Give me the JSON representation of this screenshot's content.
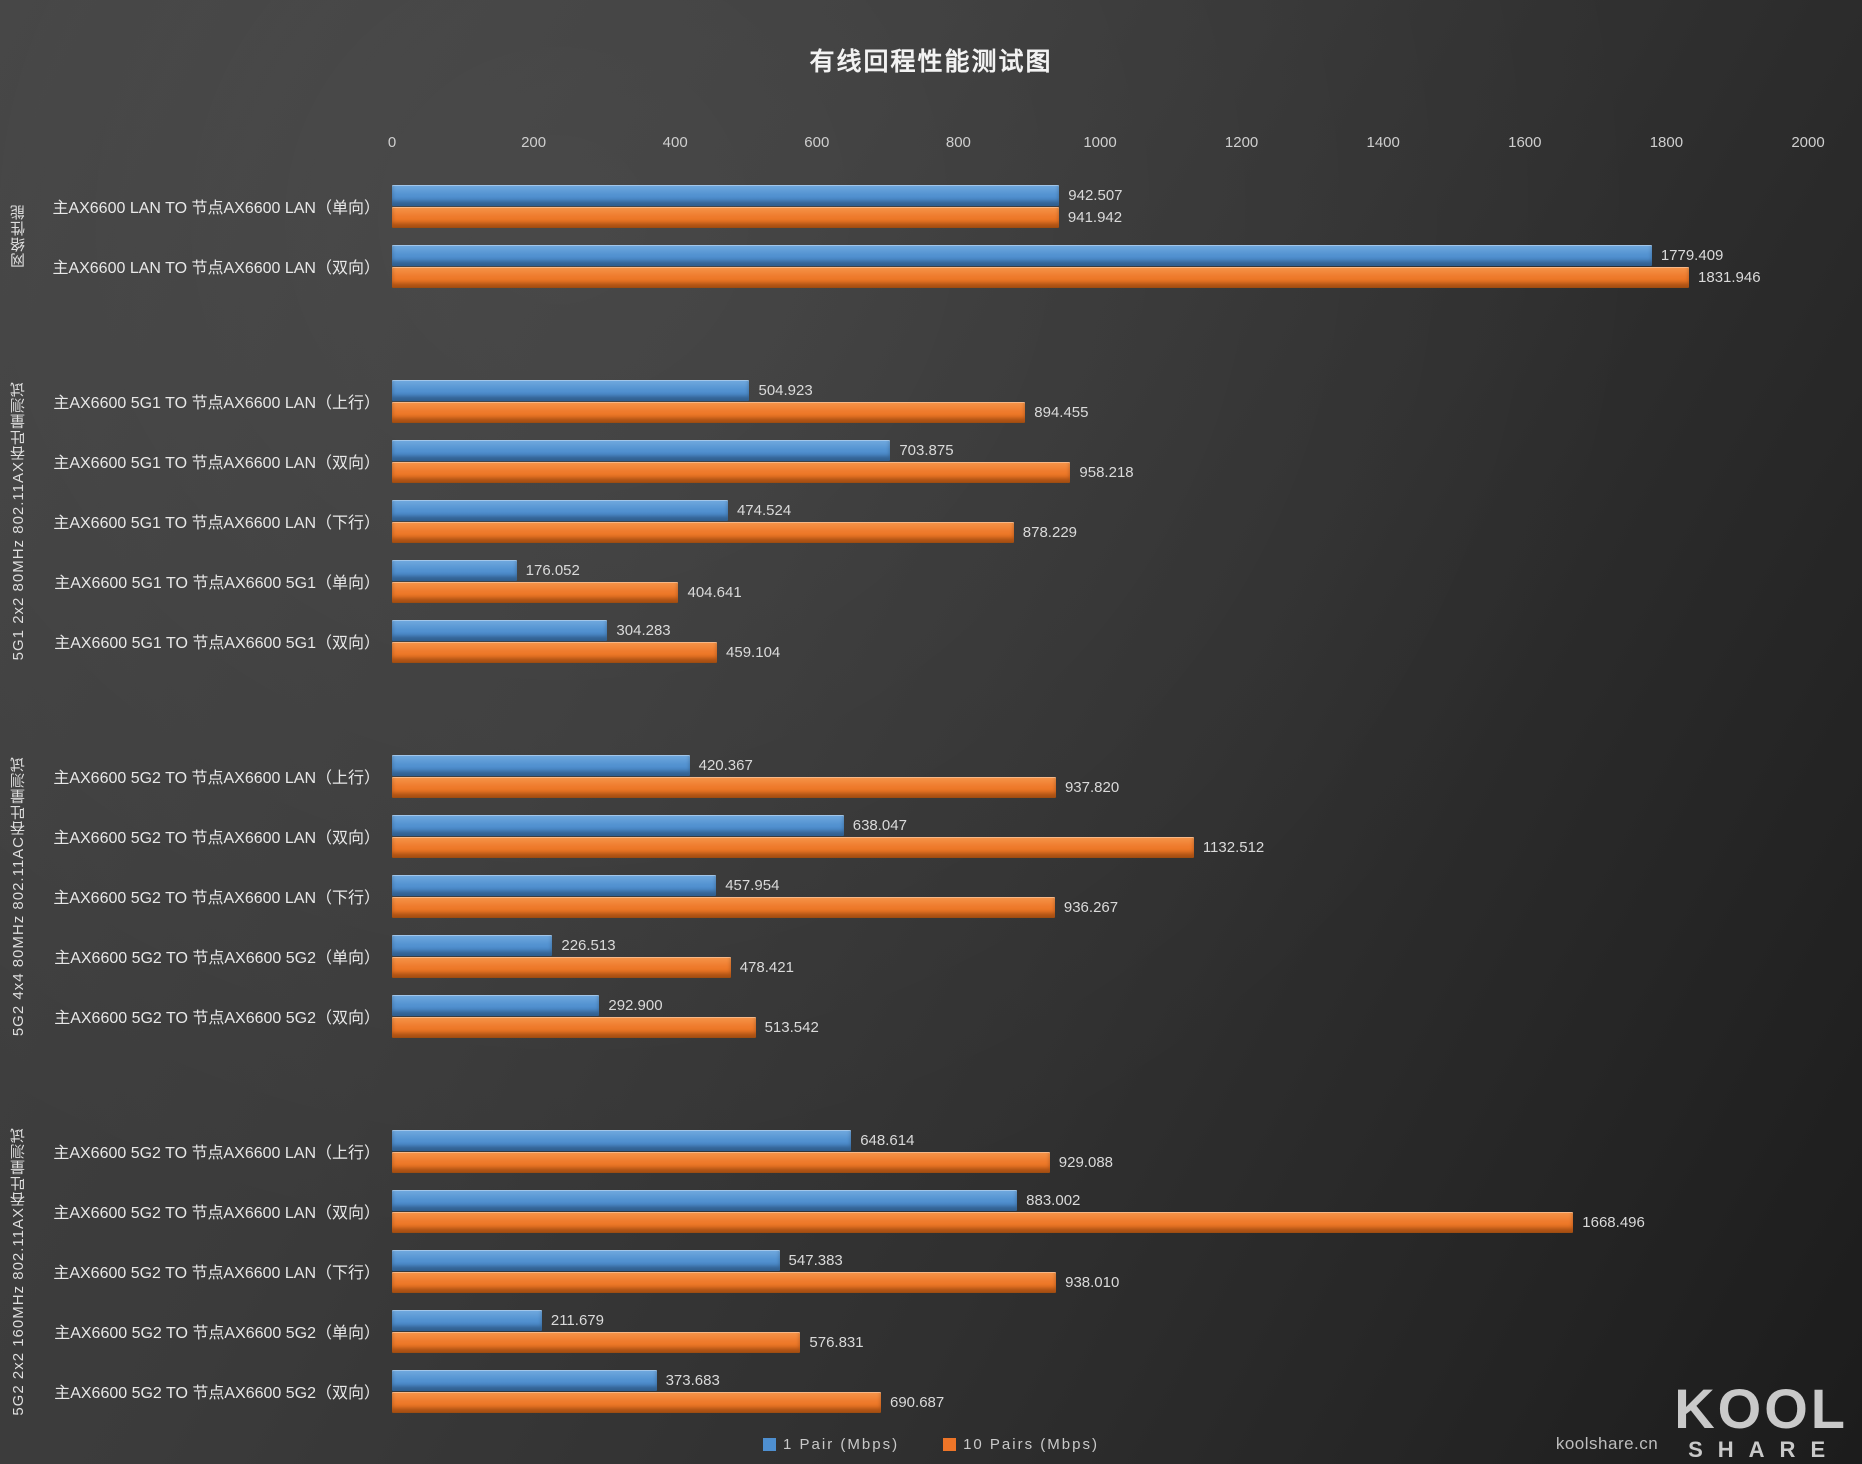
{
  "chart_data": {
    "type": "bar",
    "orientation": "horizontal",
    "title": "有线回程性能测试图",
    "x_axis": {
      "min": 0,
      "max": 2000,
      "tick_interval": 200,
      "ticks": [
        0,
        200,
        400,
        600,
        800,
        1000,
        1200,
        1400,
        1600,
        1800,
        2000
      ]
    },
    "legend_position": "bottom",
    "series": [
      {
        "name": "1 Pair (Mbps)",
        "color": "#4E8FD0"
      },
      {
        "name": "10 Pairs (Mbps)",
        "color": "#EE7528"
      }
    ],
    "groups": [
      {
        "label": "网络性能",
        "rows": [
          {
            "label": "主AX6600 LAN TO 节点AX6600 LAN（单向）",
            "values": [
              942.507,
              941.942
            ],
            "display": [
              "942.507",
              "941.942"
            ]
          },
          {
            "label": "主AX6600 LAN TO 节点AX6600 LAN（双向）",
            "values": [
              1779.409,
              1831.946
            ],
            "display": [
              "1779.409",
              "1831.946"
            ]
          }
        ]
      },
      {
        "label": "5G1 2x2 80MHz 802.11AX吞吐量测试",
        "rows": [
          {
            "label": "主AX6600 5G1 TO 节点AX6600 LAN（上行）",
            "values": [
              504.923,
              894.455
            ],
            "display": [
              "504.923",
              "894.455"
            ]
          },
          {
            "label": "主AX6600 5G1 TO 节点AX6600 LAN（双向）",
            "values": [
              703.875,
              958.218
            ],
            "display": [
              "703.875",
              "958.218"
            ]
          },
          {
            "label": "主AX6600 5G1 TO 节点AX6600 LAN（下行）",
            "values": [
              474.524,
              878.229
            ],
            "display": [
              "474.524",
              "878.229"
            ]
          },
          {
            "label": "主AX6600 5G1 TO 节点AX6600 5G1（单向）",
            "values": [
              176.052,
              404.641
            ],
            "display": [
              "176.052",
              "404.641"
            ]
          },
          {
            "label": "主AX6600 5G1 TO 节点AX6600 5G1（双向）",
            "values": [
              304.283,
              459.104
            ],
            "display": [
              "304.283",
              "459.104"
            ]
          }
        ]
      },
      {
        "label": "5G2 4x4 80MHz 802.11AC吞吐量测试",
        "rows": [
          {
            "label": "主AX6600 5G2 TO 节点AX6600 LAN（上行）",
            "values": [
              420.367,
              937.82
            ],
            "display": [
              "420.367",
              "937.820"
            ]
          },
          {
            "label": "主AX6600 5G2 TO 节点AX6600 LAN（双向）",
            "values": [
              638.047,
              1132.512
            ],
            "display": [
              "638.047",
              "1132.512"
            ]
          },
          {
            "label": "主AX6600 5G2 TO 节点AX6600 LAN（下行）",
            "values": [
              457.954,
              936.267
            ],
            "display": [
              "457.954",
              "936.267"
            ]
          },
          {
            "label": "主AX6600 5G2 TO 节点AX6600 5G2（单向）",
            "values": [
              226.513,
              478.421
            ],
            "display": [
              "226.513",
              "478.421"
            ]
          },
          {
            "label": "主AX6600 5G2 TO 节点AX6600 5G2（双向）",
            "values": [
              292.9,
              513.542
            ],
            "display": [
              "292.900",
              "513.542"
            ]
          }
        ]
      },
      {
        "label": "5G2 2x2 160MHz 802.11AX吞吐量测试",
        "rows": [
          {
            "label": "主AX6600 5G2 TO 节点AX6600 LAN（上行）",
            "values": [
              648.614,
              929.088
            ],
            "display": [
              "648.614",
              "929.088"
            ]
          },
          {
            "label": "主AX6600 5G2 TO 节点AX6600 LAN（双向）",
            "values": [
              883.002,
              1668.496
            ],
            "display": [
              "883.002",
              "1668.496"
            ]
          },
          {
            "label": "主AX6600 5G2 TO 节点AX6600 LAN（下行）",
            "values": [
              547.383,
              938.01
            ],
            "display": [
              "547.383",
              "938.010"
            ]
          },
          {
            "label": "主AX6600 5G2 TO 节点AX6600 5G2（单向）",
            "values": [
              211.679,
              576.831
            ],
            "display": [
              "211.679",
              "576.831"
            ]
          },
          {
            "label": "主AX6600 5G2 TO 节点AX6600 5G2（双向）",
            "values": [
              373.683,
              690.687
            ],
            "display": [
              "373.683",
              "690.687"
            ]
          }
        ]
      }
    ]
  },
  "watermark": {
    "site": "koolshare.cn",
    "logo_top": "KOOL",
    "logo_bottom": "SHARE"
  }
}
